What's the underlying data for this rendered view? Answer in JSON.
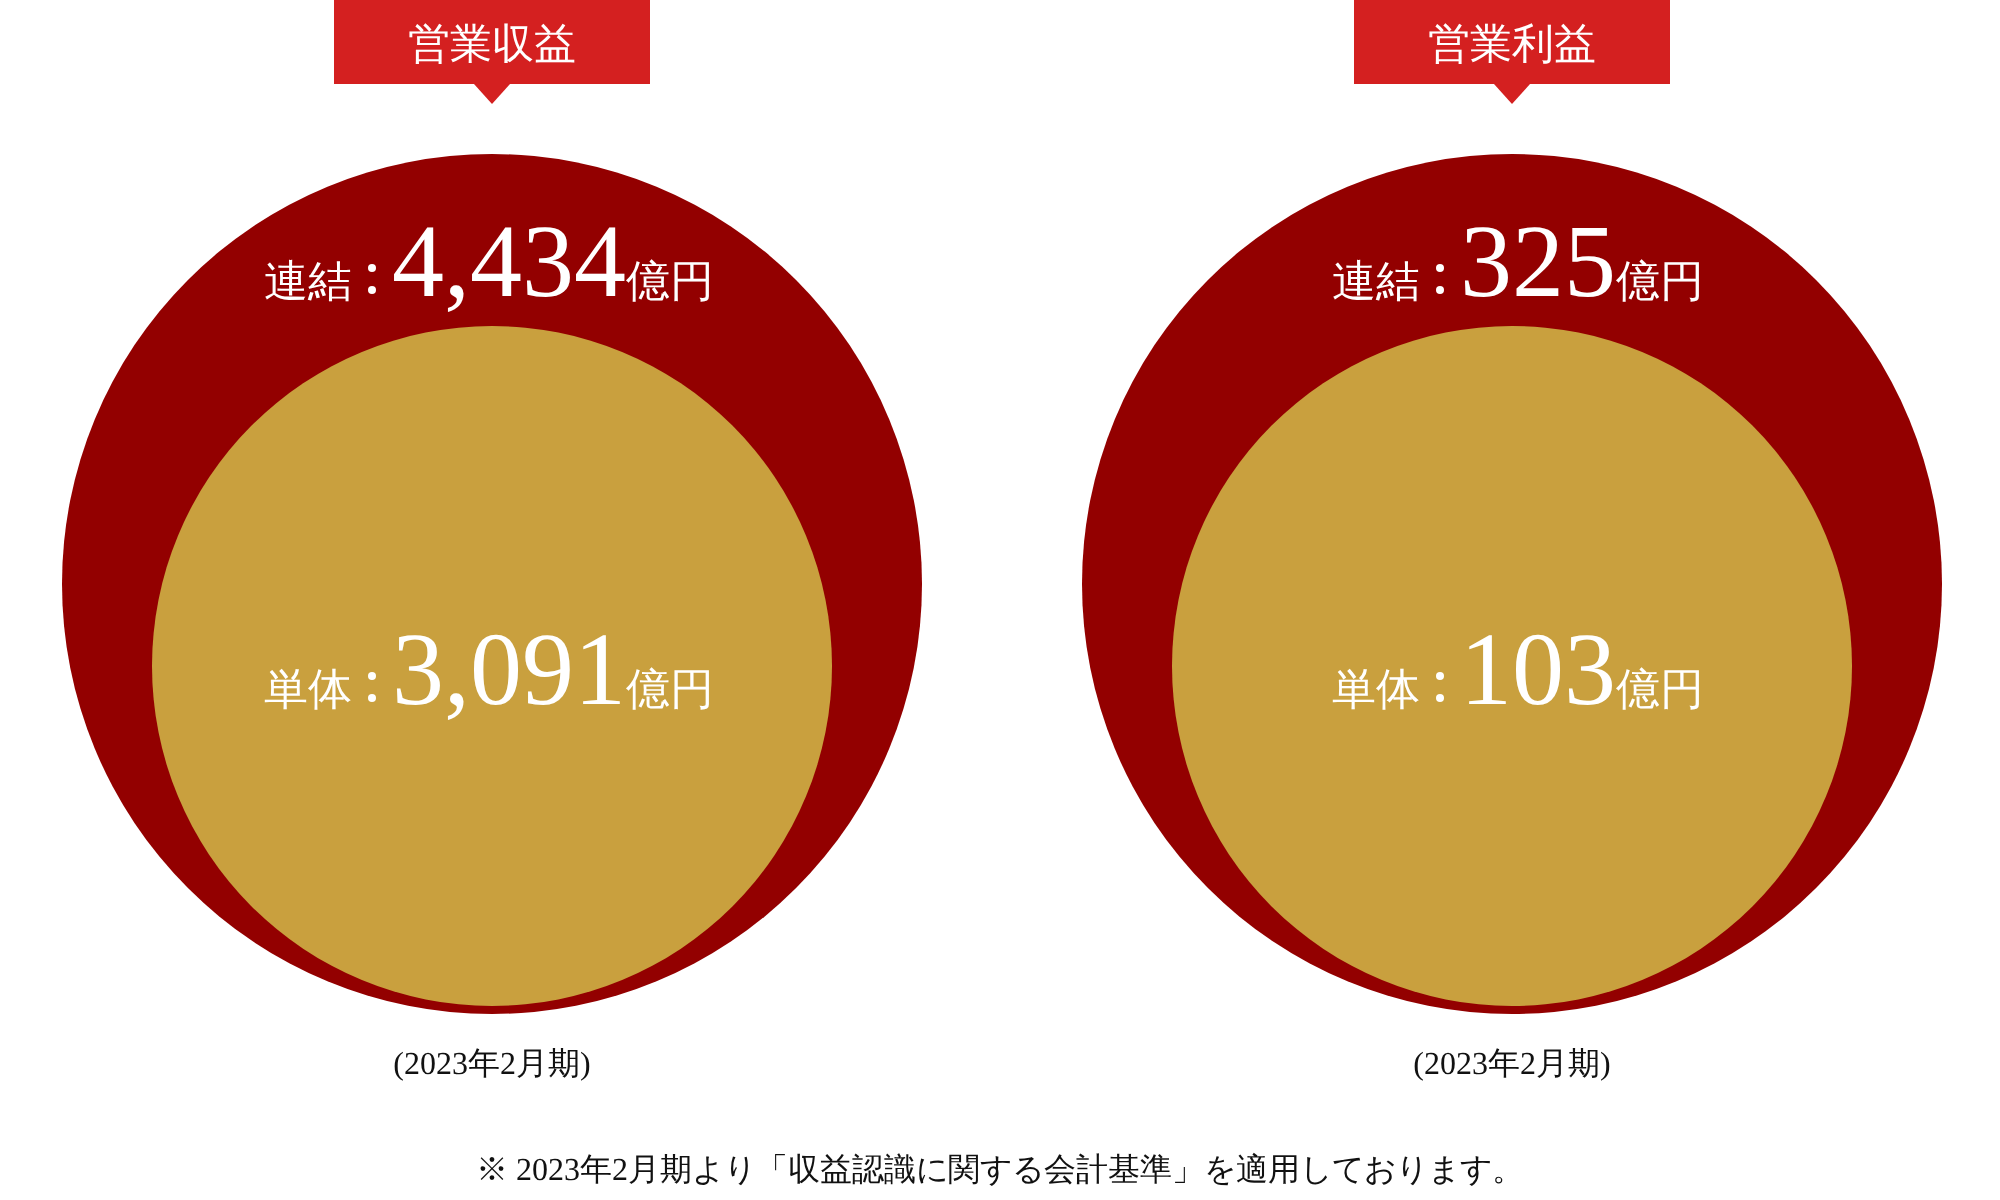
{
  "chart_data": [
    {
      "type": "other",
      "title": "営業収益",
      "categories": [
        "連結",
        "単体"
      ],
      "values": [
        4434,
        3091
      ],
      "value_labels": [
        "4,434億円",
        "3,091億円"
      ],
      "colors": [
        "#930000",
        "#c9a03e"
      ],
      "annotations": [
        "(2023年2月期)"
      ]
    },
    {
      "type": "other",
      "title": "営業利益",
      "categories": [
        "連結",
        "単体"
      ],
      "values": [
        325,
        103
      ],
      "value_labels": [
        "325億円",
        "103億円"
      ],
      "colors": [
        "#930000",
        "#c9a03e"
      ],
      "annotations": [
        "(2023年2月期)",
        "※ 2023年2月期より「収益認識に関する会計基準」を適用しております。"
      ]
    }
  ]
}
